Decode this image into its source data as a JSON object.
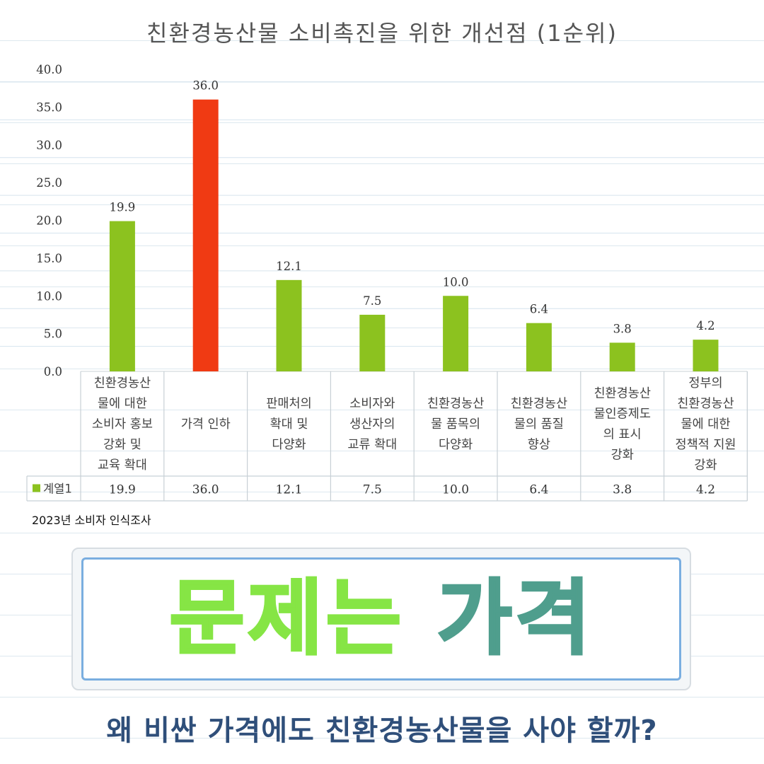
{
  "chart_data": {
    "type": "bar",
    "title": "친환경농산물 소비촉진을 위한 개선점 (1순위)",
    "categories": [
      [
        "친환경농산",
        "물에 대한",
        "소비자 홍보",
        "강화 및",
        "교육 확대"
      ],
      [
        "가격 인하"
      ],
      [
        "판매처의",
        "확대 및",
        "다양화"
      ],
      [
        "소비자와",
        "생산자의",
        "교류 확대"
      ],
      [
        "친환경농산",
        "물 품목의",
        "다양화"
      ],
      [
        "친환경농산",
        "물의 품질",
        "향상"
      ],
      [
        "친환경농산",
        "물인증제도",
        "의 표시",
        "강화"
      ],
      [
        "정부의",
        "친환경농산",
        "물에 대한",
        "정책적 지원",
        "강화"
      ]
    ],
    "values": [
      19.9,
      36.0,
      12.1,
      7.5,
      10.0,
      6.4,
      3.8,
      4.2
    ],
    "value_labels": [
      "19.9",
      "36.0",
      "12.1",
      "7.5",
      "10.0",
      "6.4",
      "3.8",
      "4.2"
    ],
    "series": [
      {
        "name": "계열1",
        "values": [
          19.9,
          36.0,
          12.1,
          7.5,
          10.0,
          6.4,
          3.8,
          4.2
        ]
      }
    ],
    "highlight_index": 1,
    "ylim": [
      0,
      40
    ],
    "yticks": [
      "0.0",
      "5.0",
      "10.0",
      "15.0",
      "20.0",
      "25.0",
      "30.0",
      "35.0",
      "40.0"
    ],
    "ytick_values": [
      0,
      5,
      10,
      15,
      20,
      25,
      30,
      35,
      40
    ],
    "grid": true,
    "data_table": true,
    "colors": {
      "bar": "#8cc21f",
      "highlight": "#f03a13",
      "legend_key": "#8cc21f"
    }
  },
  "source_note": "2023년 소비자 인식조사",
  "headline": {
    "word1": "문제는",
    "word2": "가격"
  },
  "subheadline": "왜 비싼 가격에도 친환경농산물을 사야 할까?",
  "colors": {
    "headline_word1": "#86e545",
    "headline_word2": "#4f9e8d",
    "subheadline": "#2f4f7a"
  }
}
